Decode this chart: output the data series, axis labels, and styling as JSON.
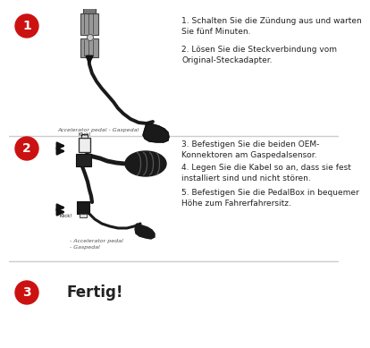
{
  "bg_color": "#ffffff",
  "divider_color": "#cccccc",
  "circle_color": "#cc1111",
  "circle_text_color": "#ffffff",
  "text_color": "#222222",
  "step1_circle": "1",
  "step2_circle": "2",
  "step3_circle": "3",
  "step1_text1": "1. Schalten Sie die Zündung aus und warten\nSie fünf Minuten.",
  "step1_text2": "2. Lösen Sie die Steckverbindung vom\nOriginal-Steckadapter.",
  "step1_caption": "Accelerator pedal - Gaspedal",
  "step2_text1": "3. Befestigen Sie die beiden OEM-\nKonnektoren am Gaspedalsensor.",
  "step2_text2": "4. Legen Sie die Kabel so an, dass sie fest\ninstalliert sind und nicht stören.",
  "step2_text3": "5. Befestigen Sie die PedalBox in bequemer\nHöhe zum Fahrerfahrersitz.",
  "step2_caption": "- Accelerator pedal\n- Gaspedal",
  "step3_text": "Fertig!"
}
